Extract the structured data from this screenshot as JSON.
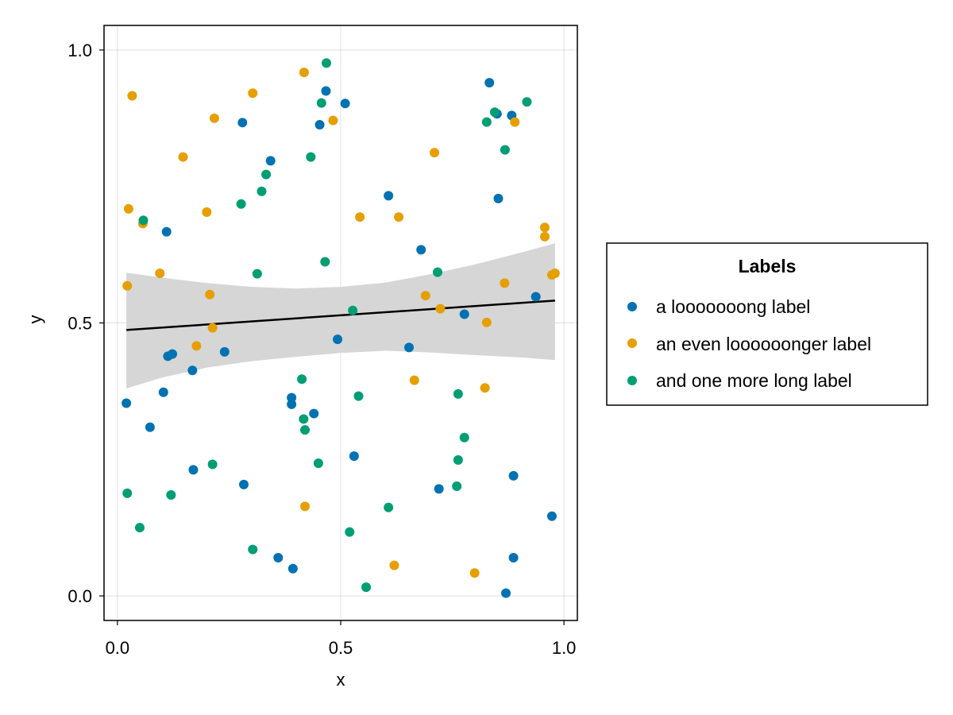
{
  "chart_data": {
    "type": "scatter",
    "xlabel": "x",
    "ylabel": "y",
    "xlim": [
      -0.03,
      1.03
    ],
    "ylim": [
      -0.045,
      1.045
    ],
    "xticks": [
      "0.0",
      "0.5",
      "1.0"
    ],
    "yticks": [
      "0.0",
      "0.5",
      "1.0"
    ],
    "grid": true,
    "legend": {
      "title": "Labels",
      "placement": "right"
    },
    "series": [
      {
        "name": "a looooooong label",
        "color": "#0072b2",
        "points": [
          [
            0.02,
            0.353
          ],
          [
            0.073,
            0.309
          ],
          [
            0.103,
            0.373
          ],
          [
            0.11,
            0.667
          ],
          [
            0.113,
            0.439
          ],
          [
            0.123,
            0.443
          ],
          [
            0.168,
            0.413
          ],
          [
            0.17,
            0.231
          ],
          [
            0.24,
            0.447
          ],
          [
            0.28,
            0.867
          ],
          [
            0.283,
            0.204
          ],
          [
            0.343,
            0.797
          ],
          [
            0.36,
            0.07
          ],
          [
            0.39,
            0.363
          ],
          [
            0.39,
            0.351
          ],
          [
            0.393,
            0.05
          ],
          [
            0.44,
            0.334
          ],
          [
            0.453,
            0.863
          ],
          [
            0.467,
            0.925
          ],
          [
            0.493,
            0.47
          ],
          [
            0.51,
            0.902
          ],
          [
            0.53,
            0.256
          ],
          [
            0.607,
            0.733
          ],
          [
            0.653,
            0.455
          ],
          [
            0.68,
            0.634
          ],
          [
            0.72,
            0.196
          ],
          [
            0.777,
            0.516
          ],
          [
            0.833,
            0.94
          ],
          [
            0.85,
            0.883
          ],
          [
            0.853,
            0.728
          ],
          [
            0.87,
            0.005
          ],
          [
            0.883,
            0.88
          ],
          [
            0.887,
            0.22
          ],
          [
            0.887,
            0.07
          ],
          [
            0.937,
            0.548
          ],
          [
            0.973,
            0.146
          ]
        ]
      },
      {
        "name": "an even loooooonger label",
        "color": "#e69f00",
        "points": [
          [
            0.022,
            0.568
          ],
          [
            0.025,
            0.709
          ],
          [
            0.033,
            0.916
          ],
          [
            0.057,
            0.682
          ],
          [
            0.095,
            0.591
          ],
          [
            0.147,
            0.804
          ],
          [
            0.177,
            0.458
          ],
          [
            0.2,
            0.703
          ],
          [
            0.207,
            0.552
          ],
          [
            0.213,
            0.491
          ],
          [
            0.217,
            0.875
          ],
          [
            0.303,
            0.921
          ],
          [
            0.418,
            0.959
          ],
          [
            0.42,
            0.164
          ],
          [
            0.483,
            0.871
          ],
          [
            0.543,
            0.694
          ],
          [
            0.62,
            0.056
          ],
          [
            0.63,
            0.694
          ],
          [
            0.665,
            0.395
          ],
          [
            0.69,
            0.55
          ],
          [
            0.71,
            0.812
          ],
          [
            0.723,
            0.526
          ],
          [
            0.8,
            0.042
          ],
          [
            0.823,
            0.381
          ],
          [
            0.827,
            0.501
          ],
          [
            0.867,
            0.573
          ],
          [
            0.89,
            0.868
          ],
          [
            0.957,
            0.675
          ],
          [
            0.957,
            0.658
          ],
          [
            0.973,
            0.588
          ],
          [
            0.98,
            0.591
          ]
        ]
      },
      {
        "name": "and one more long label",
        "color": "#009e73",
        "points": [
          [
            0.022,
            0.188
          ],
          [
            0.05,
            0.125
          ],
          [
            0.058,
            0.688
          ],
          [
            0.12,
            0.185
          ],
          [
            0.213,
            0.241
          ],
          [
            0.277,
            0.718
          ],
          [
            0.303,
            0.085
          ],
          [
            0.313,
            0.59
          ],
          [
            0.323,
            0.741
          ],
          [
            0.333,
            0.772
          ],
          [
            0.433,
            0.804
          ],
          [
            0.413,
            0.397
          ],
          [
            0.417,
            0.324
          ],
          [
            0.42,
            0.304
          ],
          [
            0.45,
            0.243
          ],
          [
            0.457,
            0.903
          ],
          [
            0.465,
            0.612
          ],
          [
            0.468,
            0.976
          ],
          [
            0.52,
            0.117
          ],
          [
            0.527,
            0.523
          ],
          [
            0.54,
            0.366
          ],
          [
            0.557,
            0.016
          ],
          [
            0.607,
            0.162
          ],
          [
            0.717,
            0.593
          ],
          [
            0.76,
            0.201
          ],
          [
            0.763,
            0.37
          ],
          [
            0.763,
            0.249
          ],
          [
            0.777,
            0.29
          ],
          [
            0.827,
            0.868
          ],
          [
            0.845,
            0.886
          ],
          [
            0.868,
            0.817
          ],
          [
            0.917,
            0.905
          ]
        ]
      }
    ],
    "fit_line": {
      "color": "#000000",
      "x": [
        0.02,
        0.98
      ],
      "y": [
        0.487,
        0.541
      ]
    },
    "confidence_band": {
      "color": "#d6d6d6",
      "x": [
        0.02,
        0.1,
        0.2,
        0.3,
        0.4,
        0.5,
        0.6,
        0.7,
        0.8,
        0.9,
        0.98
      ],
      "upper": [
        0.592,
        0.583,
        0.573,
        0.566,
        0.563,
        0.566,
        0.574,
        0.589,
        0.607,
        0.628,
        0.646
      ],
      "lower": [
        0.38,
        0.4,
        0.418,
        0.43,
        0.438,
        0.445,
        0.449,
        0.446,
        0.441,
        0.437,
        0.432
      ]
    }
  }
}
